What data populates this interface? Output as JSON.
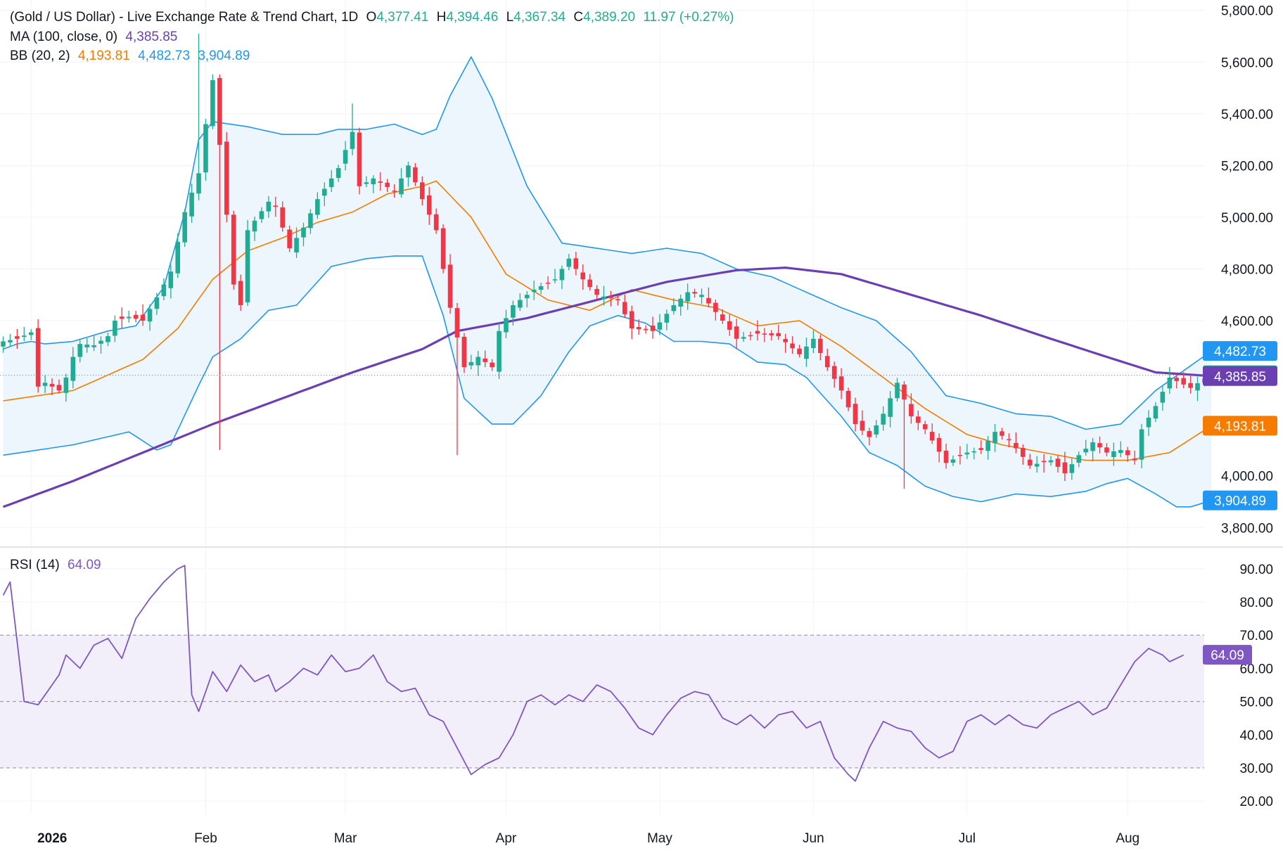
{
  "header": {
    "title": "(Gold / US Dollar) - Live Exchange Rate & Trend Chart, 1D",
    "open_label": "O",
    "open": "4,377.41",
    "high_label": "H",
    "high": "4,394.46",
    "low_label": "L",
    "low": "4,367.34",
    "close_label": "C",
    "close": "4,389.20",
    "change": "11.97 (+0.27%)"
  },
  "ma_legend": {
    "label": "MA (100, close, 0)",
    "value": "4,385.85"
  },
  "bb_legend": {
    "label": "BB (20, 2)",
    "basis": "4,193.81",
    "upper": "4,482.73",
    "lower": "3,904.89"
  },
  "rsi_legend": {
    "label": "RSI (14)",
    "value": "64.09"
  },
  "colors": {
    "up": "#22ab94",
    "down": "#f23645",
    "ma": "#6a3fb4",
    "bb_basis": "#f57c00",
    "bb_band": "#2196f3",
    "bb_fill": "#eaf4fc",
    "rsi": "#7e57c2",
    "rsi_fill": "#f2eefa",
    "last_price": "#22ab94"
  },
  "badges": [
    {
      "name": "bb-upper-badge",
      "value": 4482.73,
      "text": "4,482.73",
      "color": "#2196f3"
    },
    {
      "name": "last-price-badge",
      "value": 4389.2,
      "text": "4,389.20",
      "color": "#22ab94"
    },
    {
      "name": "ma-badge",
      "value": 4385.85,
      "text": "4,385.85",
      "color": "#6a3fb4"
    },
    {
      "name": "bb-basis-badge",
      "value": 4193.81,
      "text": "4,193.81",
      "color": "#f57c00"
    },
    {
      "name": "bb-lower-badge",
      "value": 3904.89,
      "text": "3,904.89",
      "color": "#2196f3"
    }
  ],
  "rsi_badge": {
    "value": 64.09,
    "text": "64.09",
    "color": "#7e57c2"
  },
  "chart_data": {
    "type": "candlestick",
    "price_axis": {
      "ylim": [
        3730,
        5840
      ],
      "ticks": [
        3800,
        4000,
        4200,
        4400,
        4600,
        4800,
        5000,
        5200,
        5400,
        5600,
        5800
      ],
      "tick_labels": [
        "3,800.00",
        "4,000.00",
        "4,200.00",
        "4,400.00",
        "4,600.00",
        "4,800.00",
        "5,000.00",
        "5,200.00",
        "5,400.00",
        "5,600.00",
        "5,800.00"
      ]
    },
    "rsi_axis": {
      "ylim": [
        16,
        94
      ],
      "ticks": [
        20,
        30,
        40,
        50,
        60,
        70,
        80,
        90
      ],
      "tick_labels": [
        "20.00",
        "30.00",
        "40.00",
        "50.00",
        "60.00",
        "70.00",
        "80.00",
        "90.00"
      ],
      "band": [
        30,
        70
      ],
      "mid": 50
    },
    "x_axis": {
      "bar_count": 197,
      "labels": [
        {
          "text": "2026",
          "bar": 4,
          "bold": true
        },
        {
          "text": "Feb",
          "bar": 29
        },
        {
          "text": "Mar",
          "bar": 49
        },
        {
          "text": "Apr",
          "bar": 72
        },
        {
          "text": "May",
          "bar": 94
        },
        {
          "text": "Jun",
          "bar": 116
        },
        {
          "text": "Jul",
          "bar": 138
        },
        {
          "text": "Aug",
          "bar": 161
        }
      ]
    },
    "anchors": {
      "close": [
        [
          0,
          4520
        ],
        [
          2,
          4530
        ],
        [
          4,
          4555
        ],
        [
          5,
          4345
        ],
        [
          6,
          4360
        ],
        [
          8,
          4330
        ],
        [
          9,
          4380
        ],
        [
          10,
          4460
        ],
        [
          11,
          4510
        ],
        [
          13,
          4505
        ],
        [
          15,
          4540
        ],
        [
          16,
          4600
        ],
        [
          18,
          4615
        ],
        [
          20,
          4600
        ],
        [
          22,
          4690
        ],
        [
          24,
          4790
        ],
        [
          26,
          5020
        ],
        [
          28,
          5170
        ],
        [
          29,
          5360
        ],
        [
          30,
          5530
        ],
        [
          31,
          5280
        ],
        [
          33,
          4740
        ],
        [
          34,
          4660
        ],
        [
          35,
          4950
        ],
        [
          38,
          5060
        ],
        [
          39,
          5040
        ],
        [
          41,
          4880
        ],
        [
          43,
          4960
        ],
        [
          45,
          5070
        ],
        [
          48,
          5190
        ],
        [
          50,
          5330
        ],
        [
          51,
          5120
        ],
        [
          53,
          5150
        ],
        [
          56,
          5100
        ],
        [
          58,
          5200
        ],
        [
          60,
          5070
        ],
        [
          62,
          4950
        ],
        [
          64,
          4650
        ],
        [
          66,
          4420
        ],
        [
          68,
          4460
        ],
        [
          70,
          4420
        ],
        [
          71,
          4560
        ],
        [
          73,
          4660
        ],
        [
          76,
          4720
        ],
        [
          79,
          4760
        ],
        [
          81,
          4840
        ],
        [
          83,
          4760
        ],
        [
          85,
          4700
        ],
        [
          88,
          4680
        ],
        [
          90,
          4570
        ],
        [
          93,
          4560
        ],
        [
          96,
          4660
        ],
        [
          98,
          4710
        ],
        [
          100,
          4700
        ],
        [
          103,
          4600
        ],
        [
          105,
          4530
        ],
        [
          108,
          4550
        ],
        [
          111,
          4540
        ],
        [
          114,
          4470
        ],
        [
          116,
          4530
        ],
        [
          118,
          4420
        ],
        [
          120,
          4330
        ],
        [
          122,
          4200
        ],
        [
          124,
          4150
        ],
        [
          126,
          4240
        ],
        [
          128,
          4360
        ],
        [
          130,
          4230
        ],
        [
          132,
          4180
        ],
        [
          135,
          4050
        ],
        [
          138,
          4090
        ],
        [
          140,
          4100
        ],
        [
          142,
          4170
        ],
        [
          144,
          4140
        ],
        [
          147,
          4040
        ],
        [
          150,
          4060
        ],
        [
          152,
          4010
        ],
        [
          154,
          4080
        ],
        [
          156,
          4130
        ],
        [
          158,
          4090
        ],
        [
          160,
          4100
        ],
        [
          162,
          4060
        ],
        [
          163,
          4180
        ],
        [
          165,
          4270
        ],
        [
          167,
          4380
        ],
        [
          170,
          4340
        ],
        [
          172,
          4376
        ],
        [
          173,
          4389
        ]
      ],
      "ma": [
        [
          0,
          3880
        ],
        [
          10,
          3980
        ],
        [
          20,
          4090
        ],
        [
          30,
          4200
        ],
        [
          40,
          4300
        ],
        [
          50,
          4400
        ],
        [
          60,
          4490
        ],
        [
          65,
          4560
        ],
        [
          75,
          4610
        ],
        [
          85,
          4680
        ],
        [
          95,
          4750
        ],
        [
          105,
          4795
        ],
        [
          112,
          4805
        ],
        [
          120,
          4780
        ],
        [
          130,
          4700
        ],
        [
          140,
          4620
        ],
        [
          150,
          4530
        ],
        [
          158,
          4460
        ],
        [
          165,
          4400
        ],
        [
          173,
          4386
        ]
      ],
      "basis": [
        [
          0,
          4290
        ],
        [
          10,
          4330
        ],
        [
          20,
          4450
        ],
        [
          25,
          4570
        ],
        [
          30,
          4760
        ],
        [
          35,
          4870
        ],
        [
          40,
          4920
        ],
        [
          45,
          4980
        ],
        [
          50,
          5020
        ],
        [
          55,
          5090
        ],
        [
          60,
          5120
        ],
        [
          62,
          5140
        ],
        [
          67,
          5000
        ],
        [
          72,
          4780
        ],
        [
          78,
          4680
        ],
        [
          84,
          4640
        ],
        [
          90,
          4720
        ],
        [
          96,
          4680
        ],
        [
          102,
          4650
        ],
        [
          108,
          4580
        ],
        [
          114,
          4600
        ],
        [
          120,
          4500
        ],
        [
          126,
          4380
        ],
        [
          132,
          4260
        ],
        [
          138,
          4160
        ],
        [
          143,
          4120
        ],
        [
          149,
          4090
        ],
        [
          155,
          4060
        ],
        [
          161,
          4060
        ],
        [
          167,
          4090
        ],
        [
          173,
          4194
        ]
      ],
      "upper": [
        [
          0,
          4490
        ],
        [
          2,
          4510
        ],
        [
          4,
          4520
        ],
        [
          6,
          4510
        ],
        [
          10,
          4520
        ],
        [
          15,
          4560
        ],
        [
          19,
          4580
        ],
        [
          23,
          4730
        ],
        [
          26,
          5020
        ],
        [
          28,
          5300
        ],
        [
          30,
          5370
        ],
        [
          35,
          5350
        ],
        [
          40,
          5320
        ],
        [
          45,
          5320
        ],
        [
          48,
          5340
        ],
        [
          52,
          5340
        ],
        [
          56,
          5360
        ],
        [
          60,
          5320
        ],
        [
          62,
          5340
        ],
        [
          64,
          5470
        ],
        [
          67,
          5620
        ],
        [
          70,
          5460
        ],
        [
          75,
          5120
        ],
        [
          80,
          4900
        ],
        [
          85,
          4880
        ],
        [
          90,
          4860
        ],
        [
          95,
          4880
        ],
        [
          100,
          4860
        ],
        [
          105,
          4800
        ],
        [
          110,
          4770
        ],
        [
          115,
          4710
        ],
        [
          120,
          4650
        ],
        [
          125,
          4600
        ],
        [
          130,
          4480
        ],
        [
          135,
          4310
        ],
        [
          140,
          4280
        ],
        [
          145,
          4240
        ],
        [
          150,
          4230
        ],
        [
          155,
          4180
        ],
        [
          160,
          4200
        ],
        [
          165,
          4330
        ],
        [
          173,
          4483
        ]
      ],
      "lower": [
        [
          0,
          4080
        ],
        [
          10,
          4120
        ],
        [
          18,
          4170
        ],
        [
          22,
          4100
        ],
        [
          24,
          4120
        ],
        [
          28,
          4350
        ],
        [
          30,
          4460
        ],
        [
          34,
          4530
        ],
        [
          38,
          4640
        ],
        [
          42,
          4660
        ],
        [
          47,
          4810
        ],
        [
          52,
          4840
        ],
        [
          56,
          4850
        ],
        [
          60,
          4850
        ],
        [
          63,
          4620
        ],
        [
          66,
          4300
        ],
        [
          70,
          4200
        ],
        [
          73,
          4200
        ],
        [
          77,
          4310
        ],
        [
          81,
          4480
        ],
        [
          84,
          4580
        ],
        [
          88,
          4620
        ],
        [
          92,
          4590
        ],
        [
          96,
          4520
        ],
        [
          100,
          4520
        ],
        [
          104,
          4510
        ],
        [
          108,
          4440
        ],
        [
          112,
          4430
        ],
        [
          115,
          4380
        ],
        [
          120,
          4230
        ],
        [
          124,
          4090
        ],
        [
          128,
          4040
        ],
        [
          132,
          3960
        ],
        [
          136,
          3920
        ],
        [
          140,
          3900
        ],
        [
          145,
          3930
        ],
        [
          150,
          3920
        ],
        [
          155,
          3940
        ],
        [
          158,
          3970
        ],
        [
          161,
          3990
        ],
        [
          165,
          3930
        ],
        [
          168,
          3880
        ],
        [
          170,
          3880
        ],
        [
          173,
          3905
        ]
      ],
      "rsi": [
        [
          0,
          82
        ],
        [
          1,
          86
        ],
        [
          3,
          50
        ],
        [
          5,
          49
        ],
        [
          8,
          58
        ],
        [
          9,
          64
        ],
        [
          11,
          60
        ],
        [
          13,
          67
        ],
        [
          15,
          69
        ],
        [
          17,
          63
        ],
        [
          19,
          75
        ],
        [
          21,
          81
        ],
        [
          23,
          86
        ],
        [
          25,
          90
        ],
        [
          26,
          91
        ],
        [
          27,
          52
        ],
        [
          28,
          47
        ],
        [
          30,
          59
        ],
        [
          32,
          53
        ],
        [
          34,
          61
        ],
        [
          36,
          56
        ],
        [
          38,
          58
        ],
        [
          39,
          53
        ],
        [
          41,
          56
        ],
        [
          43,
          60
        ],
        [
          45,
          58
        ],
        [
          47,
          64
        ],
        [
          49,
          59
        ],
        [
          51,
          60
        ],
        [
          53,
          64
        ],
        [
          55,
          56
        ],
        [
          57,
          53
        ],
        [
          59,
          54
        ],
        [
          61,
          46
        ],
        [
          63,
          44
        ],
        [
          65,
          36
        ],
        [
          67,
          28
        ],
        [
          69,
          31
        ],
        [
          71,
          33
        ],
        [
          73,
          40
        ],
        [
          75,
          50
        ],
        [
          77,
          52
        ],
        [
          79,
          49
        ],
        [
          81,
          52
        ],
        [
          83,
          50
        ],
        [
          85,
          55
        ],
        [
          87,
          53
        ],
        [
          89,
          48
        ],
        [
          91,
          42
        ],
        [
          93,
          40
        ],
        [
          95,
          46
        ],
        [
          97,
          51
        ],
        [
          99,
          53
        ],
        [
          101,
          52
        ],
        [
          103,
          45
        ],
        [
          105,
          43
        ],
        [
          107,
          46
        ],
        [
          109,
          42
        ],
        [
          111,
          46
        ],
        [
          113,
          47
        ],
        [
          115,
          42
        ],
        [
          117,
          44
        ],
        [
          119,
          33
        ],
        [
          121,
          28
        ],
        [
          122,
          26
        ],
        [
          124,
          36
        ],
        [
          126,
          44
        ],
        [
          128,
          42
        ],
        [
          130,
          41
        ],
        [
          132,
          36
        ],
        [
          134,
          33
        ],
        [
          136,
          35
        ],
        [
          138,
          44
        ],
        [
          140,
          46
        ],
        [
          142,
          43
        ],
        [
          144,
          46
        ],
        [
          146,
          43
        ],
        [
          148,
          42
        ],
        [
          150,
          46
        ],
        [
          152,
          48
        ],
        [
          154,
          50
        ],
        [
          156,
          46
        ],
        [
          158,
          48
        ],
        [
          160,
          55
        ],
        [
          162,
          62
        ],
        [
          164,
          66
        ],
        [
          166,
          64
        ],
        [
          167,
          62
        ],
        [
          169,
          64
        ]
      ]
    },
    "spikes": [
      [
        28,
        5710,
        "high"
      ],
      [
        31,
        4100,
        "low"
      ],
      [
        50,
        5440,
        "high"
      ],
      [
        65,
        4080,
        "low"
      ],
      [
        129,
        3950,
        "low"
      ]
    ]
  }
}
